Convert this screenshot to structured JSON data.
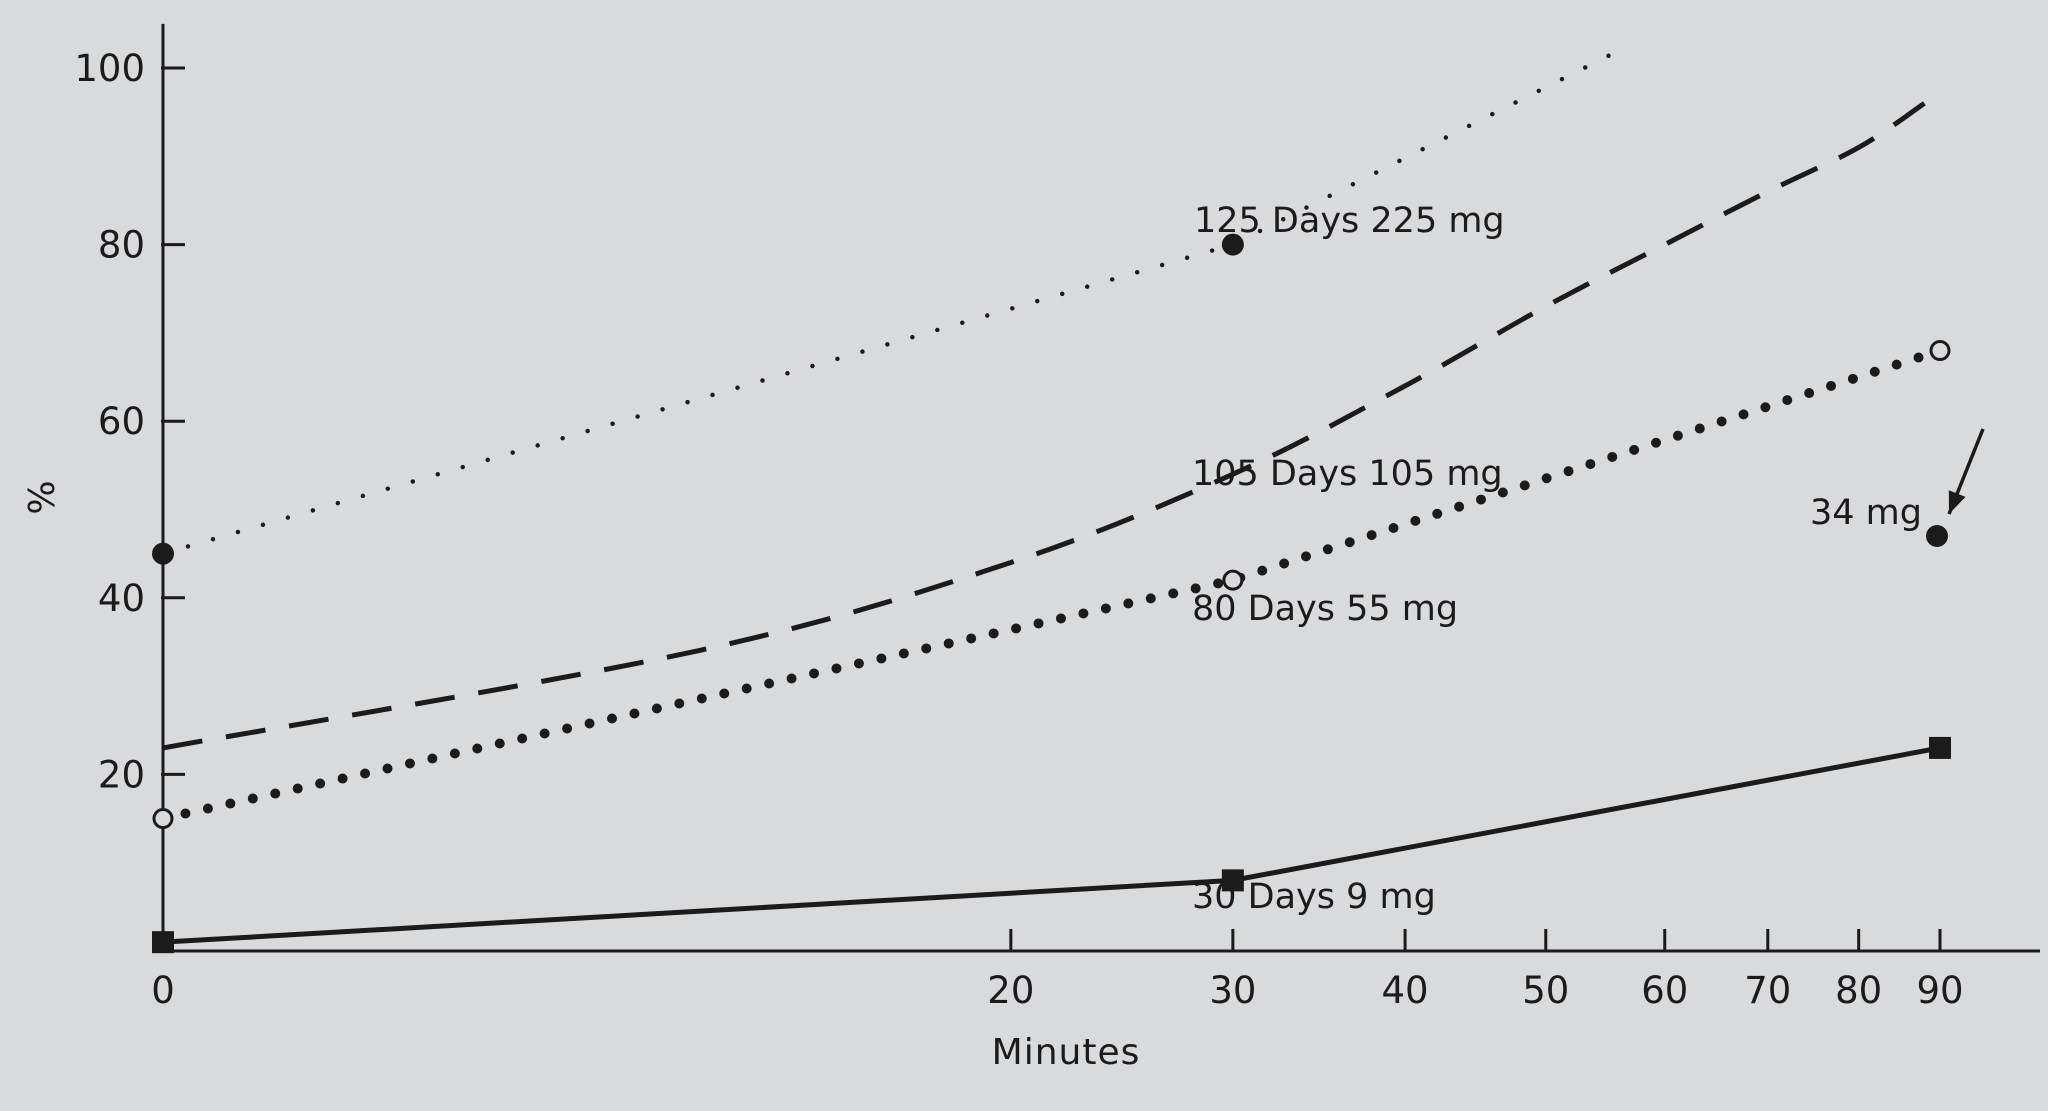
{
  "chart_data": {
    "type": "line",
    "title": "",
    "xlabel": "Minutes",
    "ylabel": "%",
    "x_scale": "log(x+10)",
    "xlim": [
      0,
      95
    ],
    "ylim": [
      0,
      105
    ],
    "x_ticks": [
      0,
      20,
      30,
      40,
      50,
      60,
      70,
      80,
      90
    ],
    "y_ticks": [
      20,
      40,
      60,
      80,
      100
    ],
    "grid": false,
    "legend": "none",
    "series": [
      {
        "name": "125 Days 225 mg",
        "style": "sparse-dotted",
        "marker": "filled-circle",
        "points": [
          {
            "x": 0,
            "y": 45,
            "marker": true
          },
          {
            "x": 30,
            "y": 80,
            "marker": true
          },
          {
            "x": 56,
            "y": 102,
            "marker": false
          }
        ]
      },
      {
        "name": "105 Days 105 mg",
        "style": "dashed",
        "marker": "none",
        "points": [
          {
            "x": 0,
            "y": 23,
            "marker": false
          },
          {
            "x": 10,
            "y": 34,
            "marker": false
          },
          {
            "x": 20,
            "y": 44,
            "marker": false
          },
          {
            "x": 30,
            "y": 54,
            "marker": false
          },
          {
            "x": 40,
            "y": 64,
            "marker": false
          },
          {
            "x": 50,
            "y": 73,
            "marker": false
          },
          {
            "x": 60,
            "y": 80,
            "marker": false
          },
          {
            "x": 70,
            "y": 86,
            "marker": false
          },
          {
            "x": 80,
            "y": 91,
            "marker": false
          },
          {
            "x": 88,
            "y": 96,
            "marker": false
          }
        ]
      },
      {
        "name": "80 Days 55 mg",
        "style": "bold-dotted",
        "marker": "open-circle",
        "points": [
          {
            "x": 0,
            "y": 15,
            "marker": true
          },
          {
            "x": 30,
            "y": 42,
            "marker": true
          },
          {
            "x": 90,
            "y": 68,
            "marker": true
          }
        ]
      },
      {
        "name": "30 Days 9 mg",
        "style": "solid",
        "marker": "filled-square",
        "points": [
          {
            "x": 0,
            "y": 1,
            "marker": true
          },
          {
            "x": 30,
            "y": 8,
            "marker": true
          },
          {
            "x": 90,
            "y": 23,
            "marker": true
          }
        ]
      }
    ],
    "annotations": [
      {
        "text": "34 mg",
        "x": 90,
        "y": 47,
        "marker": "filled-circle",
        "arrow": true
      }
    ]
  }
}
